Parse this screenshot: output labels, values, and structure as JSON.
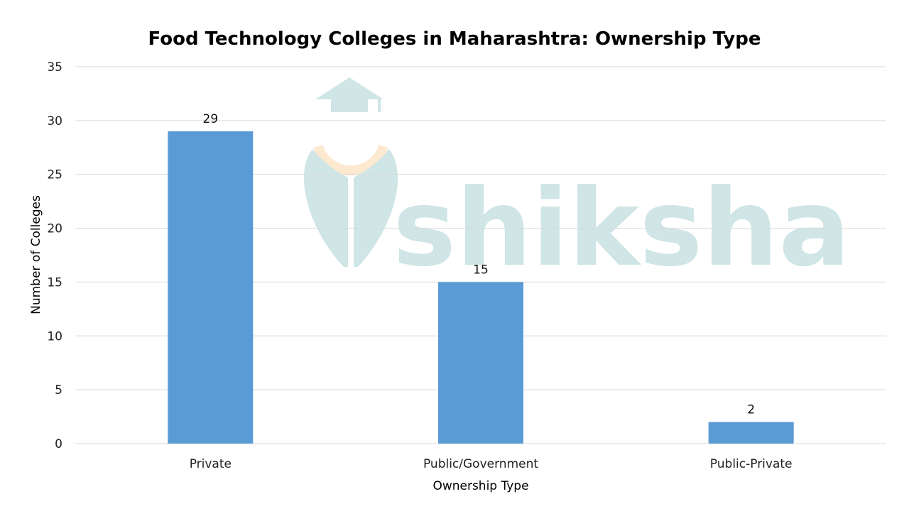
{
  "chart_data": {
    "type": "bar",
    "title": "Food Technology Colleges in Maharashtra: Ownership Type",
    "xlabel": "Ownership Type",
    "ylabel": "Number of Colleges",
    "categories": [
      "Private",
      "Public/Government",
      "Public-Private"
    ],
    "values": [
      29,
      15,
      2
    ],
    "ylim": [
      0,
      35
    ],
    "yticks": [
      0,
      5,
      10,
      15,
      20,
      25,
      30,
      35
    ],
    "grid": true,
    "bar_color": "#5b9bd5",
    "data_labels": true
  },
  "watermark": {
    "text": "shiksha",
    "color": "#cfe5e6",
    "accent_color": "#fde9cf",
    "icon": "graduation-cap-logo-icon"
  }
}
